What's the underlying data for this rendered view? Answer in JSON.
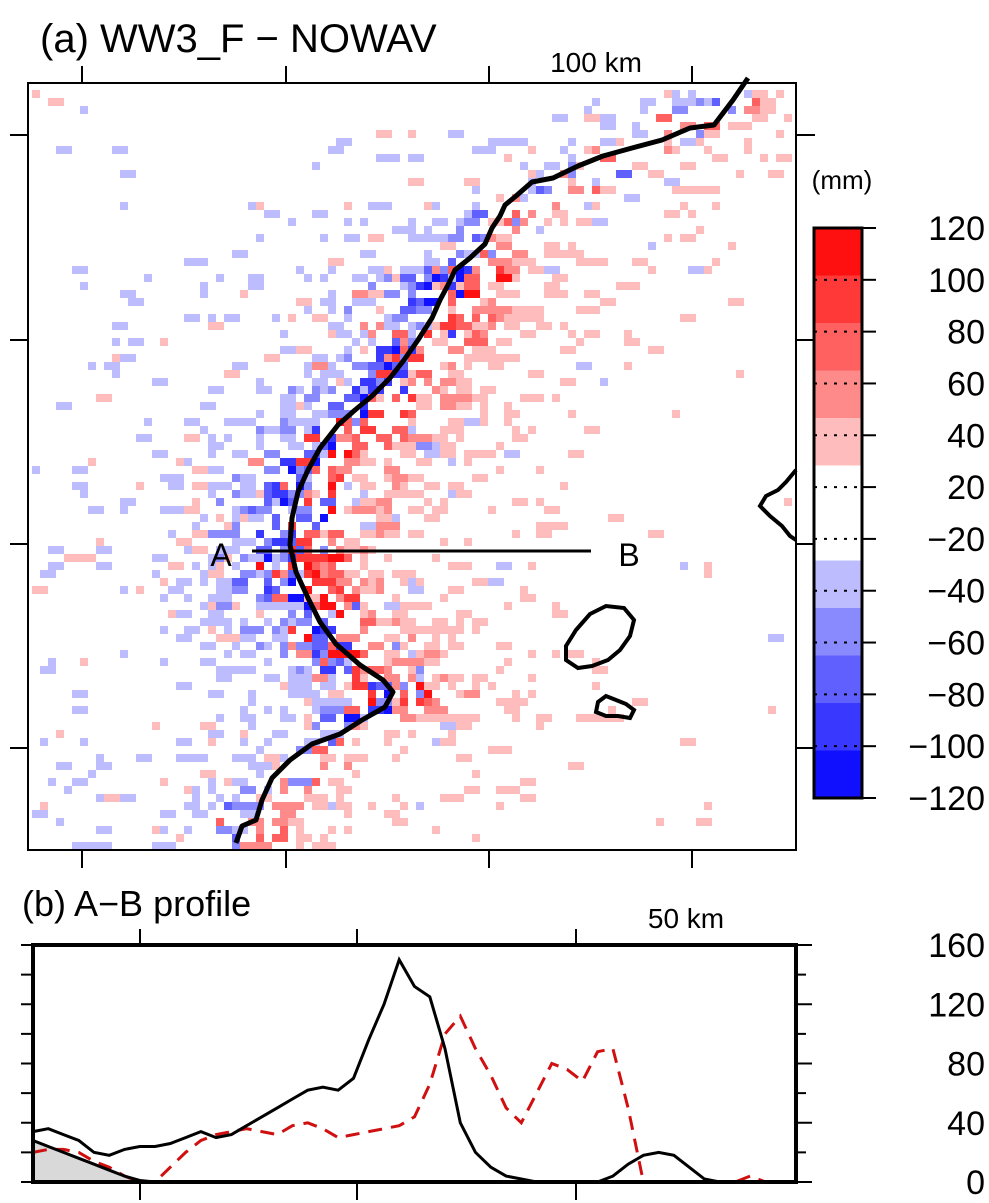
{
  "panel_a": {
    "title": "(a) WW3_F − NOWAV",
    "scale_label": "100 km",
    "point_a": "A",
    "point_b": "B"
  },
  "colorbar": {
    "unit": "(mm)",
    "labels": [
      "120",
      "100",
      "80",
      "60",
      "40",
      "20",
      "−20",
      "−40",
      "−60",
      "−80",
      "−100",
      "−120"
    ],
    "levels_top_to_bottom": [
      {
        "range": "100 to 120",
        "color": "#ff1010"
      },
      {
        "range": "80 to 100",
        "color": "#ff3838"
      },
      {
        "range": "60 to 80",
        "color": "#ff6060"
      },
      {
        "range": "40 to 60",
        "color": "#ff8a8a"
      },
      {
        "range": "20 to 40",
        "color": "#ffbcbc"
      },
      {
        "range": "-20 to 20",
        "color": "#ffffff"
      },
      {
        "range": "-40 to -20",
        "color": "#bcbcff"
      },
      {
        "range": "-60 to -40",
        "color": "#8a8aff"
      },
      {
        "range": "-80 to -60",
        "color": "#6060ff"
      },
      {
        "range": "-100 to -80",
        "color": "#3838ff"
      },
      {
        "range": "-120 to -100",
        "color": "#1010ff"
      }
    ]
  },
  "panel_b": {
    "title": "(b) A−B profile",
    "scale_label": "50 km",
    "ytick_labels": [
      "160",
      "120",
      "80",
      "40",
      "0"
    ]
  },
  "chart_data": [
    {
      "type": "heatmap",
      "title": "(a) WW3_F − NOWAV",
      "colorbar_unit": "(mm)",
      "colorbar_range": [
        -120,
        120
      ],
      "colorbar_levels": [
        -120,
        -100,
        -80,
        -60,
        -40,
        -20,
        20,
        40,
        60,
        80,
        100,
        120
      ],
      "scale_bar": "100 km",
      "transect": {
        "start": "A",
        "end": "B"
      }
    },
    {
      "type": "line",
      "title": "(b) A−B profile",
      "scale_bar": "50 km",
      "ylim": [
        0,
        160
      ],
      "yticks": [
        0,
        40,
        80,
        120,
        160
      ],
      "x_unit": "km",
      "series": [
        {
          "style": "solid black",
          "x": [
            0,
            2,
            4,
            6,
            8,
            10,
            12,
            14,
            16,
            18,
            20,
            22,
            24,
            26,
            28,
            30,
            32,
            34,
            36,
            38,
            40,
            42,
            44,
            46,
            48,
            50,
            52,
            54,
            56,
            58,
            60,
            62,
            64,
            66,
            68,
            70,
            72,
            74,
            76,
            78,
            80,
            82,
            84,
            86,
            88,
            90,
            92,
            94,
            96,
            98,
            100
          ],
          "y": [
            34,
            36,
            32,
            28,
            20,
            18,
            22,
            24,
            24,
            26,
            30,
            34,
            30,
            32,
            38,
            44,
            50,
            56,
            62,
            64,
            62,
            70,
            96,
            120,
            150,
            132,
            125,
            90,
            40,
            20,
            10,
            4,
            2,
            0,
            0,
            0,
            0,
            0,
            4,
            12,
            18,
            20,
            18,
            10,
            2,
            0,
            0,
            0,
            0,
            0,
            0
          ]
        },
        {
          "style": "dashed red",
          "x": [
            0,
            2,
            4,
            6,
            8,
            10,
            12,
            14,
            16,
            18,
            20,
            22,
            24,
            26,
            28,
            30,
            32,
            34,
            36,
            38,
            40,
            42,
            44,
            46,
            48,
            50,
            52,
            54,
            56,
            58,
            60,
            62,
            64,
            66,
            68,
            70,
            72,
            74,
            76,
            78,
            80,
            82,
            84,
            86,
            88,
            90,
            92,
            94,
            96,
            98,
            100
          ],
          "y": [
            20,
            22,
            22,
            20,
            14,
            10,
            4,
            0,
            0,
            10,
            20,
            28,
            32,
            34,
            36,
            34,
            32,
            38,
            40,
            36,
            30,
            32,
            34,
            36,
            38,
            44,
            66,
            100,
            112,
            90,
            72,
            50,
            40,
            60,
            80,
            76,
            68,
            88,
            90,
            50,
            0,
            0,
            0,
            0,
            0,
            0,
            0,
            4,
            0,
            0,
            0
          ]
        },
        {
          "style": "gray filled area",
          "x": [
            0,
            2,
            4,
            6,
            8,
            10,
            12,
            14,
            16
          ],
          "y": [
            28,
            24,
            20,
            16,
            12,
            8,
            4,
            1,
            0
          ]
        }
      ]
    }
  ]
}
